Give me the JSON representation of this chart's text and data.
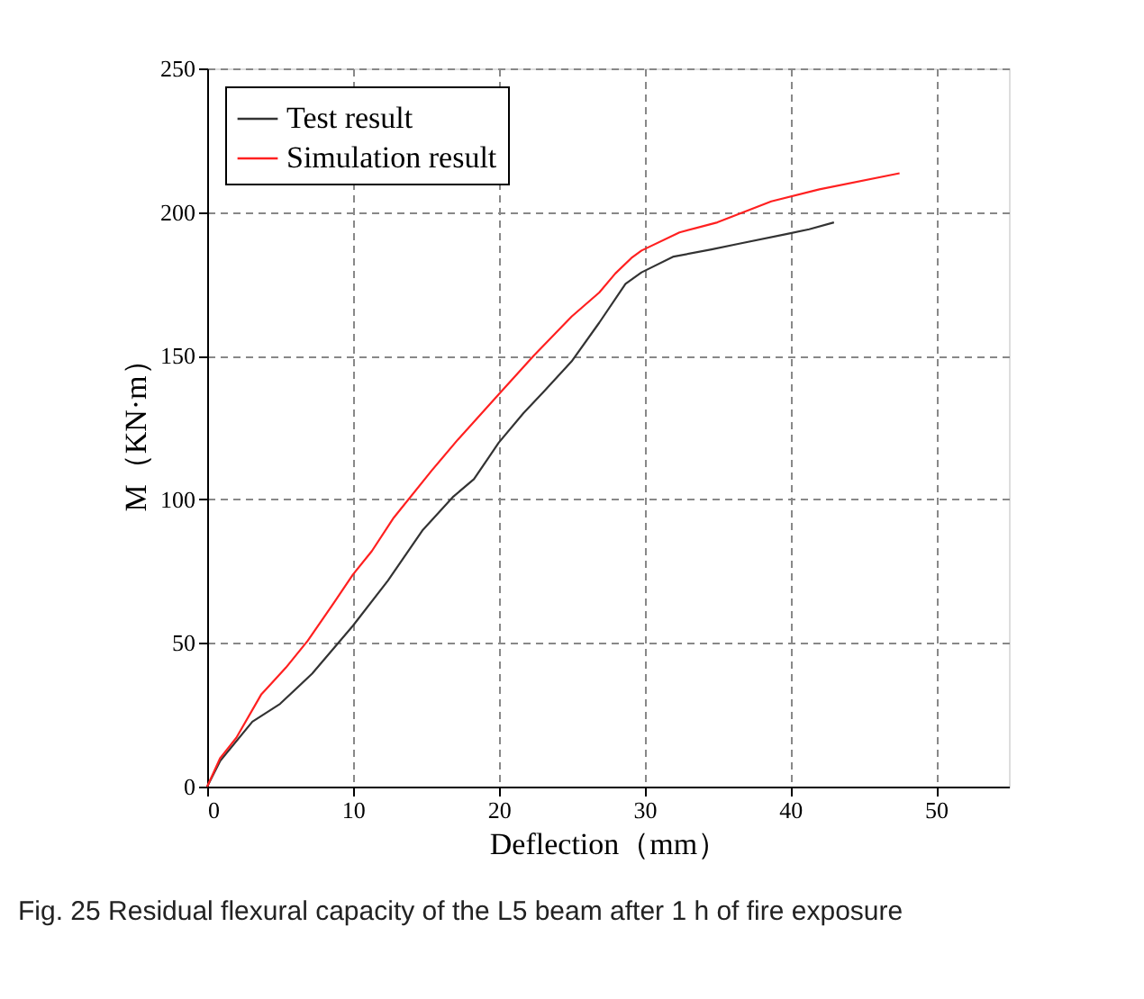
{
  "chart_data": {
    "type": "line",
    "xlabel": "Deflection（mm）",
    "ylabel": "M（KN·m）",
    "xlim": [
      0,
      55
    ],
    "xticks": [
      0,
      10,
      20,
      30,
      40,
      50
    ],
    "ylim": [
      0,
      250
    ],
    "yticks": [
      0,
      50,
      100,
      150,
      200,
      250
    ],
    "grid": true,
    "legend": "top left",
    "line_style": "solid",
    "marker": "none",
    "annotations": [
      "Fig. 25  Residual flexural capacity of the L5 beam after 1 h of fire exposure"
    ],
    "series": [
      {
        "name": "Test result",
        "color": "#333333",
        "x": [
          0,
          0.9,
          3.1,
          5,
          7.2,
          10,
          12.4,
          14.8,
          16.9,
          18.3,
          20,
          21.7,
          23.1,
          25,
          26.9,
          28.7,
          29.8,
          32,
          34.6,
          36.5,
          39.8,
          41.3,
          43
        ],
        "values": [
          0,
          9,
          22.6,
          28.8,
          39.3,
          56,
          71.7,
          89.4,
          101,
          107,
          119.7,
          130,
          137.5,
          148,
          161.5,
          175,
          179,
          184.5,
          187,
          189,
          192.4,
          194,
          196.4
        ]
      },
      {
        "name": "Simulation result",
        "color": "#ff2020",
        "x": [
          0,
          0.9,
          2,
          3.7,
          5.4,
          6.9,
          8.7,
          10,
          11.3,
          12.8,
          15.4,
          17.2,
          19.8,
          22.4,
          25,
          26.9,
          28,
          29.1,
          29.8,
          32.4,
          35,
          38.7,
          42,
          47.5
        ],
        "values": [
          0,
          10,
          17,
          32,
          41.4,
          50.8,
          64,
          73.8,
          82,
          93.6,
          110,
          120.8,
          135.4,
          150,
          163.6,
          172,
          178.6,
          184,
          186.6,
          192.9,
          196.4,
          203.7,
          207.9,
          213.5
        ]
      }
    ]
  }
}
